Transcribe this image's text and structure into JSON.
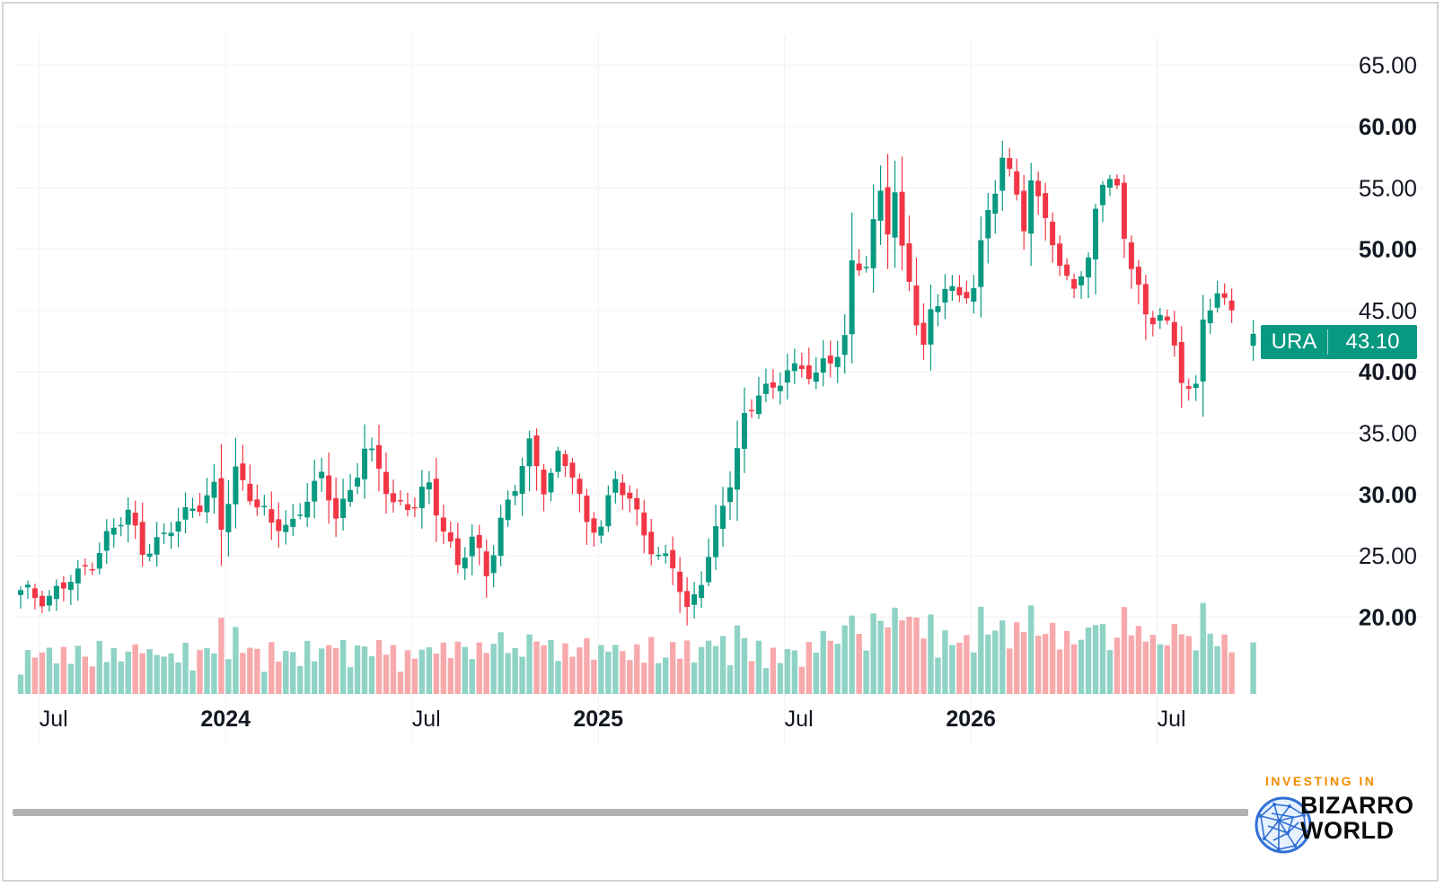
{
  "chart_data": {
    "type": "candlestick",
    "symbol": "URA",
    "last_price": "43.10",
    "ylim": [
      15,
      67
    ],
    "y_ticks": [
      {
        "value": 65,
        "label": "65.00",
        "bold": false
      },
      {
        "value": 60,
        "label": "60.00",
        "bold": true
      },
      {
        "value": 55,
        "label": "55.00",
        "bold": false
      },
      {
        "value": 50,
        "label": "50.00",
        "bold": true
      },
      {
        "value": 45,
        "label": "45.00",
        "bold": false
      },
      {
        "value": 40,
        "label": "40.00",
        "bold": true
      },
      {
        "value": 35,
        "label": "35.00",
        "bold": false
      },
      {
        "value": 30,
        "label": "30.00",
        "bold": true
      },
      {
        "value": 25,
        "label": "25.00",
        "bold": false
      },
      {
        "value": 20,
        "label": "20.00",
        "bold": true
      }
    ],
    "x_ticks": [
      {
        "bar": 2.6,
        "label": "Jul",
        "bold": false
      },
      {
        "bar": 28.6,
        "label": "2024",
        "bold": true
      },
      {
        "bar": 54.6,
        "label": "Jul",
        "bold": false
      },
      {
        "bar": 80.6,
        "label": "2025",
        "bold": true
      },
      {
        "bar": 106.6,
        "label": "Jul",
        "bold": false
      },
      {
        "bar": 132.6,
        "label": "2026",
        "bold": true
      },
      {
        "bar": 158.6,
        "label": "Jul",
        "bold": false
      }
    ],
    "close_path": [
      [
        0,
        21.8
      ],
      [
        4,
        21.8
      ],
      [
        8,
        23.2
      ],
      [
        12,
        26.5
      ],
      [
        15,
        28.3
      ],
      [
        17,
        25.8
      ],
      [
        20,
        26.3
      ],
      [
        24,
        29.2
      ],
      [
        27,
        30.2
      ],
      [
        28,
        27.0
      ],
      [
        30,
        32.0
      ],
      [
        32,
        30.3
      ],
      [
        35,
        27.2
      ],
      [
        38,
        27.8
      ],
      [
        40,
        30.0
      ],
      [
        42,
        31.0
      ],
      [
        44,
        28.5
      ],
      [
        46,
        30.5
      ],
      [
        48,
        33.5
      ],
      [
        50,
        32.0
      ],
      [
        52,
        29.5
      ],
      [
        55,
        29.0
      ],
      [
        57,
        30.5
      ],
      [
        59,
        27.5
      ],
      [
        61,
        24.3
      ],
      [
        63,
        26.0
      ],
      [
        65,
        23.8
      ],
      [
        67,
        28.0
      ],
      [
        69,
        30.5
      ],
      [
        71,
        33.8
      ],
      [
        73,
        31.0
      ],
      [
        75,
        33.0
      ],
      [
        77,
        31.5
      ],
      [
        79,
        27.5
      ],
      [
        81,
        28.0
      ],
      [
        83,
        30.8
      ],
      [
        85,
        29.5
      ],
      [
        87,
        27.2
      ],
      [
        89,
        24.8
      ],
      [
        91,
        24.0
      ],
      [
        93,
        20.5
      ],
      [
        95,
        23.5
      ],
      [
        97,
        26.5
      ],
      [
        99,
        31.0
      ],
      [
        101,
        36.5
      ],
      [
        103,
        38.5
      ],
      [
        105,
        38.0
      ],
      [
        107,
        40.5
      ],
      [
        109,
        40.5
      ],
      [
        111,
        39.5
      ],
      [
        113,
        40.8
      ],
      [
        115,
        43.0
      ],
      [
        116,
        49.0
      ],
      [
        118,
        48.5
      ],
      [
        120,
        54.5
      ],
      [
        121,
        52.0
      ],
      [
        122,
        55.0
      ],
      [
        123,
        50.0
      ],
      [
        124,
        47.5
      ],
      [
        125,
        44.0
      ],
      [
        126,
        41.5
      ],
      [
        127,
        44.5
      ],
      [
        129,
        47.5
      ],
      [
        131,
        46.0
      ],
      [
        133,
        46.5
      ],
      [
        135,
        53.5
      ],
      [
        137,
        57.5
      ],
      [
        138,
        56.0
      ],
      [
        139,
        54.5
      ],
      [
        140,
        51.5
      ],
      [
        141,
        55.0
      ],
      [
        143,
        53.5
      ],
      [
        145,
        48.0
      ],
      [
        147,
        47.0
      ],
      [
        148,
        47.5
      ],
      [
        149,
        49.0
      ],
      [
        150,
        54.0
      ],
      [
        151,
        56.0
      ],
      [
        153,
        54.5
      ],
      [
        154,
        51.0
      ],
      [
        155,
        48.5
      ],
      [
        157,
        45.0
      ],
      [
        159,
        44.5
      ],
      [
        161,
        42.0
      ],
      [
        162,
        39.5
      ],
      [
        163,
        38.5
      ],
      [
        164,
        39.0
      ],
      [
        165,
        45.0
      ],
      [
        167,
        45.5
      ],
      [
        169,
        45.5
      ],
      [
        170,
        44.0
      ],
      [
        171,
        42.0
      ],
      [
        172,
        43.1
      ]
    ],
    "gap_bars": [
      170,
      171
    ]
  },
  "price_tag": {
    "symbol": "URA",
    "value": "43.10"
  },
  "logo": {
    "top": "INVESTING IN",
    "line1": "BIZARRO",
    "line2": "WORLD"
  },
  "colors": {
    "up": "#089981",
    "down": "#f23645",
    "vol_up": "#8fd3c6",
    "vol_down": "#f7a9ab",
    "grid": "#f0f0f0",
    "text": "#131722",
    "logo_orange": "#f28c00",
    "logo_blue": "#2f6fd6"
  }
}
